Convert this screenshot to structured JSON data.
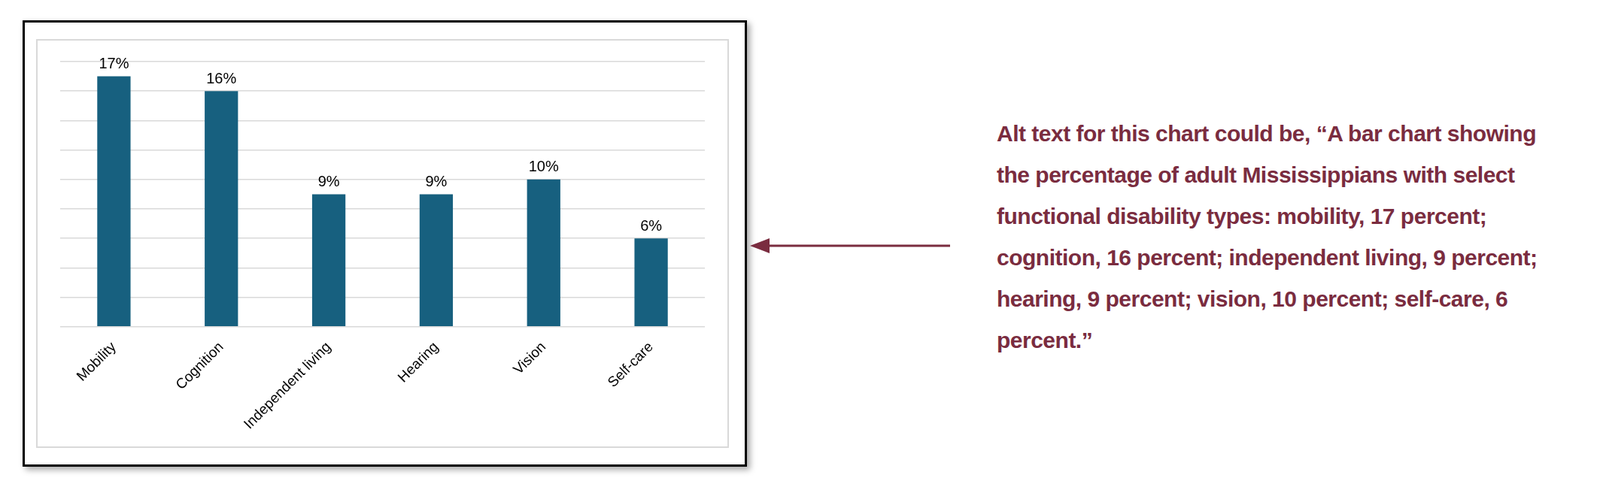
{
  "chart_data": {
    "type": "bar",
    "categories": [
      "Mobility",
      "Cognition",
      "Independent living",
      "Hearing",
      "Vision",
      "Self-care"
    ],
    "values": [
      17,
      16,
      9,
      9,
      10,
      6
    ],
    "value_labels": [
      "17%",
      "16%",
      "9%",
      "9%",
      "10%",
      "6%"
    ],
    "data_labels": true,
    "color": "#17607f",
    "ylim": [
      0,
      18
    ],
    "yticks": [
      0,
      2,
      4,
      6,
      8,
      10,
      12,
      14,
      16,
      18
    ],
    "grid": true,
    "tick_labels": "x",
    "annotation": "Alt text for this chart could be, “A bar chart showing the percentage of adult Mississippians with select functional disability types: mobility, 17 percent; cognition, 16 percent; independent living, 9 percent; hearing, 9 percent; vision, 10 percent; self-care, 6 percent.”"
  }
}
